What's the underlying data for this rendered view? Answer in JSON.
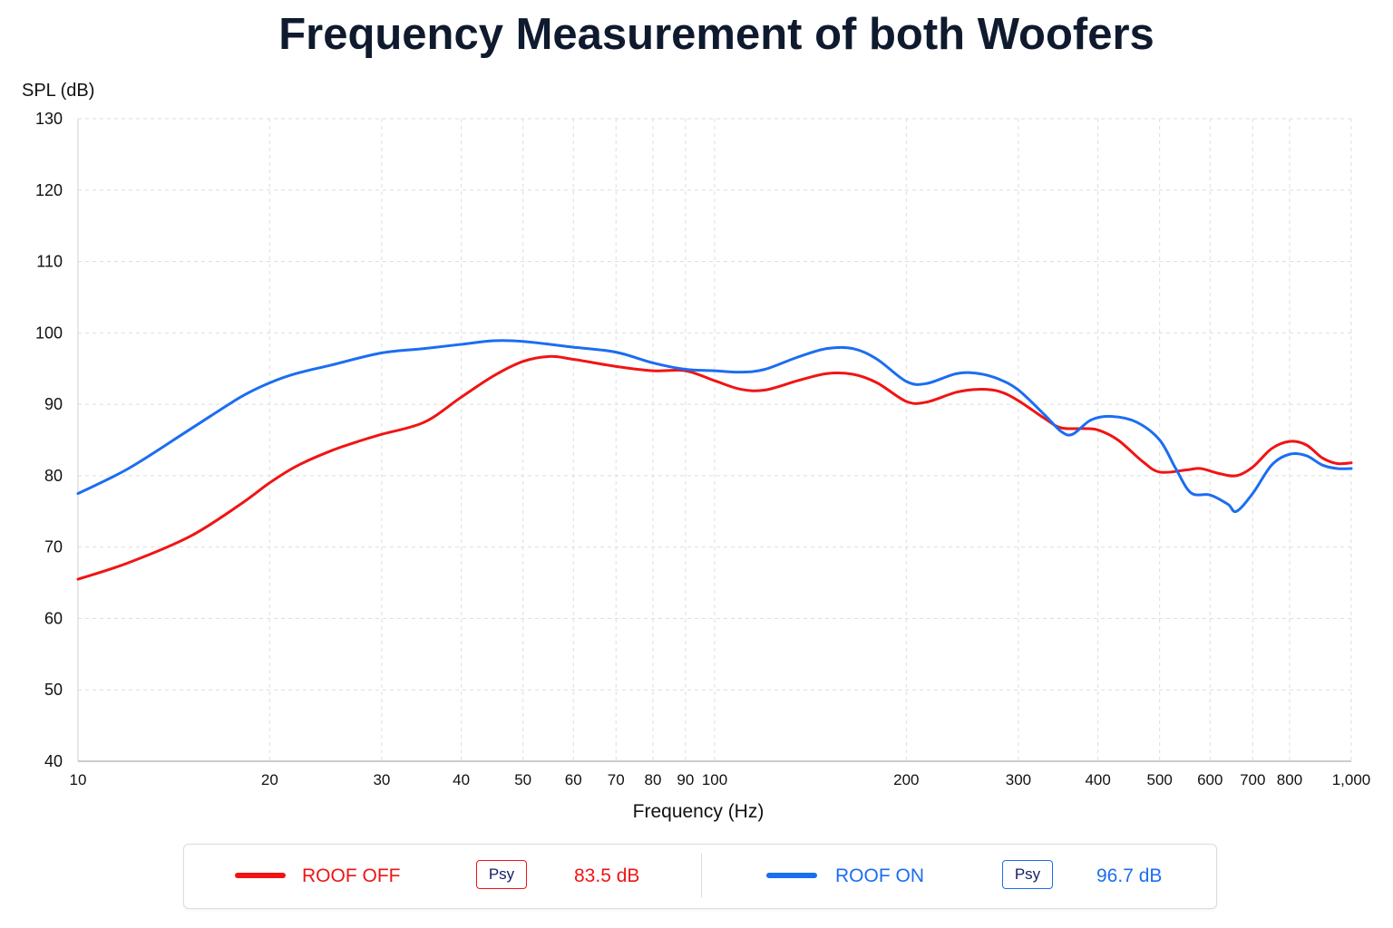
{
  "chart_data": {
    "type": "line",
    "title": "Frequency Measurement of both Woofers",
    "xlabel": "Frequency (Hz)",
    "ylabel": "SPL (dB)",
    "x_scale": "log",
    "xlim": [
      10,
      1000
    ],
    "ylim": [
      40,
      130
    ],
    "y_ticks": [
      "130",
      "120",
      "110",
      "100",
      "90",
      "80",
      "70",
      "60",
      "50",
      "40"
    ],
    "y_tick_values": [
      130,
      120,
      110,
      100,
      90,
      80,
      70,
      60,
      50,
      40
    ],
    "x_ticks": [
      "10",
      "20",
      "30",
      "40",
      "50",
      "60",
      "70",
      "80",
      "90",
      "100",
      "200",
      "300",
      "400",
      "500",
      "600",
      "700",
      "800",
      "1,000"
    ],
    "x_tick_values": [
      10,
      20,
      30,
      40,
      50,
      60,
      70,
      80,
      90,
      100,
      200,
      300,
      400,
      500,
      600,
      700,
      800,
      1000
    ],
    "grid": true,
    "legend_position": "bottom",
    "series": [
      {
        "name": "ROOF OFF",
        "color": "#f01414",
        "badge": "Psy",
        "value_label": "83.5 dB",
        "points": [
          [
            10,
            65.5
          ],
          [
            12,
            67.8
          ],
          [
            15,
            71.5
          ],
          [
            18,
            76
          ],
          [
            20,
            79
          ],
          [
            22,
            81.3
          ],
          [
            25,
            83.5
          ],
          [
            28,
            85
          ],
          [
            30,
            85.8
          ],
          [
            35,
            87.5
          ],
          [
            40,
            91
          ],
          [
            45,
            94
          ],
          [
            50,
            96
          ],
          [
            55,
            96.7
          ],
          [
            60,
            96.3
          ],
          [
            70,
            95.3
          ],
          [
            80,
            94.7
          ],
          [
            90,
            94.7
          ],
          [
            100,
            93.3
          ],
          [
            110,
            92.1
          ],
          [
            120,
            92
          ],
          [
            135,
            93.3
          ],
          [
            150,
            94.3
          ],
          [
            165,
            94.2
          ],
          [
            180,
            93
          ],
          [
            200,
            90.4
          ],
          [
            215,
            90.3
          ],
          [
            240,
            91.7
          ],
          [
            260,
            92.1
          ],
          [
            280,
            91.8
          ],
          [
            300,
            90.5
          ],
          [
            330,
            88
          ],
          [
            350,
            86.7
          ],
          [
            380,
            86.6
          ],
          [
            400,
            86.4
          ],
          [
            430,
            85
          ],
          [
            470,
            82
          ],
          [
            500,
            80.5
          ],
          [
            550,
            80.8
          ],
          [
            580,
            81
          ],
          [
            620,
            80.3
          ],
          [
            660,
            80
          ],
          [
            700,
            81.2
          ],
          [
            750,
            83.8
          ],
          [
            800,
            84.8
          ],
          [
            850,
            84.3
          ],
          [
            900,
            82.5
          ],
          [
            950,
            81.7
          ],
          [
            1000,
            81.8
          ]
        ]
      },
      {
        "name": "ROOF ON",
        "color": "#1b6df2",
        "badge": "Psy",
        "value_label": "96.7 dB",
        "points": [
          [
            10,
            77.5
          ],
          [
            12,
            81
          ],
          [
            15,
            86.5
          ],
          [
            18,
            91
          ],
          [
            20,
            93
          ],
          [
            22,
            94.3
          ],
          [
            25,
            95.5
          ],
          [
            30,
            97.2
          ],
          [
            35,
            97.8
          ],
          [
            40,
            98.4
          ],
          [
            45,
            98.9
          ],
          [
            50,
            98.8
          ],
          [
            60,
            98
          ],
          [
            70,
            97.3
          ],
          [
            80,
            95.8
          ],
          [
            90,
            94.9
          ],
          [
            100,
            94.7
          ],
          [
            110,
            94.5
          ],
          [
            120,
            94.9
          ],
          [
            135,
            96.6
          ],
          [
            150,
            97.8
          ],
          [
            165,
            97.8
          ],
          [
            180,
            96.3
          ],
          [
            200,
            93.2
          ],
          [
            215,
            92.9
          ],
          [
            240,
            94.3
          ],
          [
            260,
            94.3
          ],
          [
            280,
            93.5
          ],
          [
            300,
            92
          ],
          [
            330,
            88.5
          ],
          [
            350,
            86.2
          ],
          [
            365,
            85.8
          ],
          [
            390,
            87.8
          ],
          [
            420,
            88.3
          ],
          [
            460,
            87.5
          ],
          [
            500,
            85
          ],
          [
            530,
            81
          ],
          [
            560,
            77.6
          ],
          [
            600,
            77.3
          ],
          [
            640,
            76
          ],
          [
            660,
            75
          ],
          [
            700,
            77.5
          ],
          [
            750,
            81.5
          ],
          [
            800,
            83
          ],
          [
            850,
            82.8
          ],
          [
            900,
            81.5
          ],
          [
            950,
            81
          ],
          [
            1000,
            81
          ]
        ]
      }
    ]
  }
}
